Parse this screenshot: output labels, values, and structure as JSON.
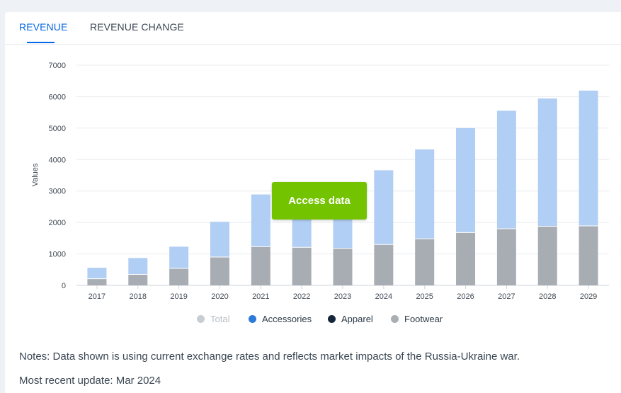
{
  "tabs": [
    {
      "label": "REVENUE",
      "active": true
    },
    {
      "label": "REVENUE CHANGE",
      "active": false
    }
  ],
  "access_button": {
    "label": "Access data"
  },
  "legend": [
    {
      "label": "Total",
      "color": "#c8cdd2",
      "disabled": true
    },
    {
      "label": "Accessories",
      "color": "#2e7ad8",
      "disabled": false
    },
    {
      "label": "Apparel",
      "color": "#14263a",
      "disabled": false
    },
    {
      "label": "Footwear",
      "color": "#a9aeb3",
      "disabled": false
    }
  ],
  "notes": {
    "text": "Notes: Data shown is using current exchange rates and reflects market impacts of the Russia-Ukraine war.",
    "update": "Most recent update: Mar 2024"
  },
  "colors": {
    "accent": "#0666e5",
    "bar_top": "#b1cef4",
    "bar_bottom": "#a8adb4",
    "button": "#74c300"
  },
  "chart_data": {
    "type": "bar",
    "stacked": true,
    "categories": [
      "2017",
      "2018",
      "2019",
      "2020",
      "2021",
      "2022",
      "2023",
      "2024",
      "2025",
      "2026",
      "2027",
      "2028",
      "2029"
    ],
    "ylabel": "Values",
    "ylim": [
      0,
      7000
    ],
    "yticks": [
      0,
      1000,
      2000,
      3000,
      4000,
      5000,
      6000,
      7000
    ],
    "grid": true,
    "totals": [
      560,
      870,
      1230,
      2020,
      2890,
      2850,
      2840,
      3660,
      4320,
      5000,
      5550,
      5940,
      6190
    ],
    "series": [
      {
        "name": "Footwear",
        "values": [
          210,
          350,
          540,
          900,
          1230,
          1210,
          1180,
          1300,
          1480,
          1680,
          1800,
          1880,
          1890
        ]
      },
      {
        "name": "Accessories",
        "values": [
          350,
          520,
          690,
          1120,
          1660,
          1640,
          1660,
          2360,
          2840,
          3320,
          3750,
          4060,
          4300
        ]
      }
    ]
  }
}
